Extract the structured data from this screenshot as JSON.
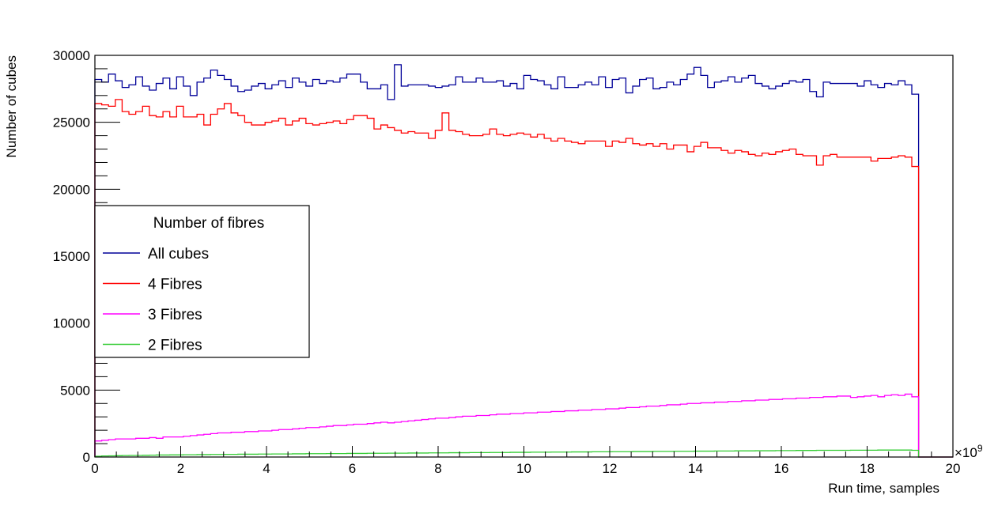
{
  "chart_data": {
    "type": "histogram-step",
    "xlabel": "Run time, samples",
    "x_multiplier_label": "×10",
    "x_multiplier_exp": "9",
    "ylabel": "Number of cubes",
    "xlim": [
      0,
      20
    ],
    "ylim": [
      0,
      30000
    ],
    "x_ticks": [
      0,
      2,
      4,
      6,
      8,
      10,
      12,
      14,
      16,
      18,
      20
    ],
    "x_tick_labels": [
      "0",
      "2",
      "4",
      "6",
      "8",
      "10",
      "12",
      "14",
      "16",
      "18",
      "20"
    ],
    "y_ticks": [
      0,
      5000,
      10000,
      15000,
      20000,
      25000,
      30000
    ],
    "y_tick_labels": [
      "0",
      "5000",
      "10000",
      "15000",
      "20000",
      "25000",
      "30000"
    ],
    "grid": false,
    "bin_width": 0.2,
    "data_end": 19.2,
    "legend": {
      "title": "Number of fibres",
      "placement": "left-middle"
    },
    "series": [
      {
        "name": "All cubes",
        "color": "#000099",
        "values": [
          28200,
          28000,
          28600,
          28100,
          27600,
          27800,
          28400,
          27700,
          27400,
          27900,
          28300,
          27500,
          28400,
          27700,
          27000,
          28000,
          28300,
          28900,
          28500,
          28200,
          27700,
          27300,
          27400,
          27700,
          27900,
          27500,
          27800,
          28100,
          27600,
          28300,
          28000,
          27700,
          28200,
          27900,
          28100,
          28000,
          28300,
          28600,
          28600,
          28000,
          27500,
          27500,
          27800,
          26700,
          29300,
          27700,
          27800,
          27800,
          27800,
          27700,
          27600,
          27700,
          27800,
          28400,
          28000,
          28000,
          28300,
          28000,
          28000,
          28100,
          27700,
          27900,
          27500,
          28500,
          28200,
          28100,
          27800,
          27500,
          28400,
          27600,
          27600,
          27800,
          28000,
          27800,
          28400,
          27600,
          28200,
          28300,
          27200,
          27700,
          28200,
          28300,
          27500,
          27600,
          28000,
          27800,
          28200,
          28600,
          29100,
          28500,
          27600,
          28000,
          28100,
          28400,
          28000,
          28300,
          28500,
          27900,
          27700,
          27500,
          27700,
          27900,
          28100,
          28000,
          28200,
          27300,
          26900,
          28000,
          27900,
          27900,
          27900,
          27900,
          27700,
          28100,
          27800,
          27600,
          27900,
          27800,
          28100,
          27800,
          27100
        ]
      },
      {
        "name": "4 Fibres",
        "color": "#ff0000",
        "values": [
          26400,
          26300,
          26200,
          26700,
          25800,
          25600,
          25800,
          26200,
          25500,
          25400,
          25800,
          25400,
          26200,
          25400,
          25400,
          25600,
          24800,
          25600,
          26000,
          26400,
          25700,
          25500,
          25000,
          24800,
          24800,
          25000,
          25100,
          25300,
          24800,
          25100,
          25300,
          24900,
          24800,
          24900,
          25000,
          25100,
          24900,
          25200,
          25500,
          25500,
          25300,
          24500,
          24800,
          24600,
          24400,
          24200,
          24300,
          24200,
          24200,
          23800,
          24400,
          25700,
          24400,
          24300,
          24100,
          24000,
          24000,
          24100,
          24500,
          24100,
          24000,
          24100,
          24200,
          24100,
          23900,
          24100,
          23800,
          23600,
          23800,
          23600,
          23500,
          23400,
          23600,
          23600,
          23600,
          23200,
          23600,
          23500,
          23800,
          23400,
          23300,
          23400,
          23200,
          23400,
          23000,
          23300,
          23300,
          22800,
          23200,
          23500,
          23100,
          23100,
          22900,
          22700,
          22900,
          22800,
          22600,
          22500,
          22700,
          22600,
          22800,
          22900,
          23000,
          22600,
          22500,
          22500,
          21800,
          22500,
          22600,
          22400,
          22400,
          22400,
          22400,
          22400,
          22100,
          22300,
          22300,
          22400,
          22500,
          22400,
          21700
        ]
      },
      {
        "name": "3 Fibres",
        "color": "#ff00ff",
        "values": [
          1200,
          1250,
          1300,
          1350,
          1350,
          1350,
          1400,
          1400,
          1450,
          1400,
          1500,
          1500,
          1500,
          1550,
          1600,
          1650,
          1700,
          1750,
          1800,
          1800,
          1850,
          1850,
          1900,
          1900,
          1950,
          1950,
          2000,
          2050,
          2050,
          2100,
          2150,
          2200,
          2200,
          2250,
          2300,
          2350,
          2350,
          2400,
          2450,
          2450,
          2500,
          2550,
          2600,
          2550,
          2600,
          2650,
          2700,
          2750,
          2800,
          2850,
          2900,
          2900,
          2950,
          3000,
          3050,
          3050,
          3100,
          3100,
          3150,
          3200,
          3200,
          3250,
          3250,
          3300,
          3300,
          3350,
          3350,
          3400,
          3400,
          3450,
          3450,
          3500,
          3500,
          3550,
          3550,
          3600,
          3600,
          3650,
          3700,
          3700,
          3750,
          3800,
          3800,
          3850,
          3900,
          3900,
          3950,
          4000,
          4000,
          4050,
          4050,
          4100,
          4100,
          4150,
          4150,
          4200,
          4200,
          4250,
          4250,
          4300,
          4300,
          4350,
          4350,
          4400,
          4400,
          4450,
          4450,
          4500,
          4500,
          4550,
          4550,
          4450,
          4500,
          4550,
          4600,
          4500,
          4600,
          4650,
          4600,
          4700,
          4500
        ]
      },
      {
        "name": "2 Fibres",
        "color": "#33cc33",
        "values": [
          60,
          80,
          90,
          100,
          110,
          120,
          120,
          130,
          140,
          150,
          150,
          160,
          160,
          170,
          170,
          180,
          180,
          190,
          190,
          200,
          200,
          210,
          210,
          210,
          220,
          220,
          230,
          230,
          230,
          240,
          240,
          250,
          250,
          250,
          260,
          260,
          260,
          270,
          270,
          270,
          280,
          280,
          280,
          290,
          290,
          290,
          300,
          300,
          300,
          310,
          310,
          310,
          320,
          320,
          320,
          330,
          330,
          330,
          340,
          340,
          340,
          350,
          350,
          350,
          360,
          360,
          360,
          370,
          370,
          370,
          380,
          380,
          380,
          390,
          390,
          390,
          400,
          400,
          400,
          410,
          410,
          410,
          420,
          420,
          420,
          430,
          430,
          430,
          440,
          440,
          440,
          450,
          450,
          450,
          460,
          460,
          460,
          470,
          470,
          470,
          480,
          480,
          480,
          490,
          490,
          490,
          500,
          500,
          500,
          500,
          500,
          510,
          510,
          510,
          510,
          520,
          520,
          520,
          520,
          520,
          500
        ]
      }
    ]
  }
}
